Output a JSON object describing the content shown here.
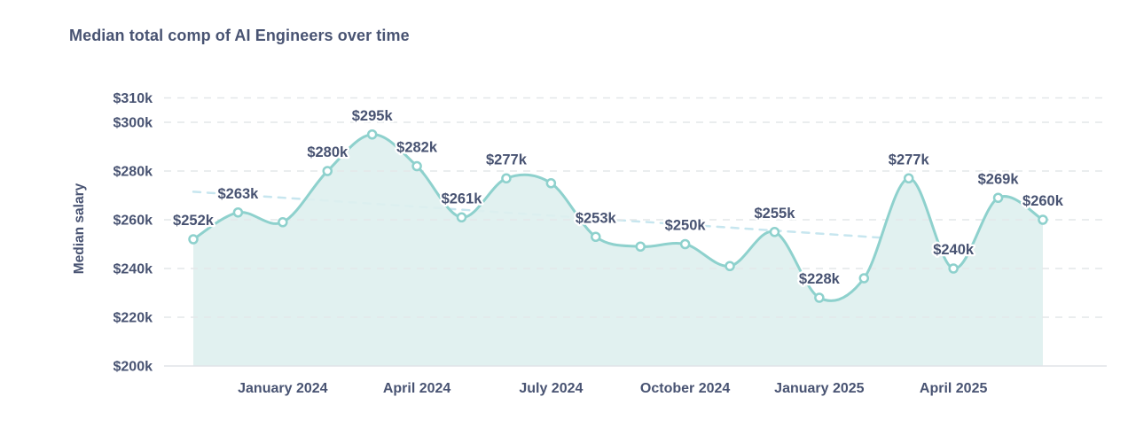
{
  "title": "Median total comp of AI Engineers over time",
  "chart_data": {
    "type": "area",
    "title": "Median total comp of AI Engineers over time",
    "xlabel": "",
    "ylabel": "Median salary",
    "x": [
      "Nov 2023",
      "Dec 2023",
      "Jan 2024",
      "Feb 2024",
      "Mar 2024",
      "Apr 2024",
      "May 2024",
      "Jun 2024",
      "Jul 2024",
      "Aug 2024",
      "Sep 2024",
      "Oct 2024",
      "Nov 2024",
      "Dec 2024",
      "Jan 2025",
      "Feb 2025",
      "Mar 2025",
      "Apr 2025",
      "May 2025",
      "Jun 2025"
    ],
    "values": [
      252,
      263,
      259,
      280,
      295,
      282,
      261,
      277,
      275,
      253,
      249,
      250,
      241,
      255,
      228,
      236,
      277,
      240,
      269,
      260
    ],
    "point_labels": [
      "$252k",
      "$263k",
      null,
      "$280k",
      "$295k",
      "$282k",
      "$261k",
      "$277k",
      null,
      "$253k",
      null,
      "$250k",
      null,
      "$255k",
      "$228k",
      null,
      "$277k",
      "$240k",
      "$269k",
      "$260k"
    ],
    "y_ticks": [
      {
        "label": "$310k",
        "value": 310
      },
      {
        "label": "$300k",
        "value": 300
      },
      {
        "label": "$280k",
        "value": 280
      },
      {
        "label": "$260k",
        "value": 260
      },
      {
        "label": "$240k",
        "value": 240
      },
      {
        "label": "$220k",
        "value": 220
      },
      {
        "label": "$200k",
        "value": 200
      }
    ],
    "x_ticks": [
      {
        "label": "January 2024",
        "index": 2
      },
      {
        "label": "April 2024",
        "index": 5
      },
      {
        "label": "July 2024",
        "index": 8
      },
      {
        "label": "October 2024",
        "index": 11
      },
      {
        "label": "January 2025",
        "index": 14
      },
      {
        "label": "April 2025",
        "index": 17
      }
    ],
    "ylim": [
      200,
      315
    ],
    "grid": "horizontal-dashed",
    "legend": "none",
    "trend_line": {
      "style": "dashed",
      "start_value": 271.5,
      "end_value": 252.5
    },
    "colors": {
      "text": "#485372",
      "line": "#8ed1cd",
      "area_fill": "#def0ee",
      "marker_fill": "#ffffff",
      "trend": "#c7e6ef",
      "gridline": "#e4e7e9",
      "baseline": "#e0e4e7",
      "background": "#ffffff"
    }
  }
}
